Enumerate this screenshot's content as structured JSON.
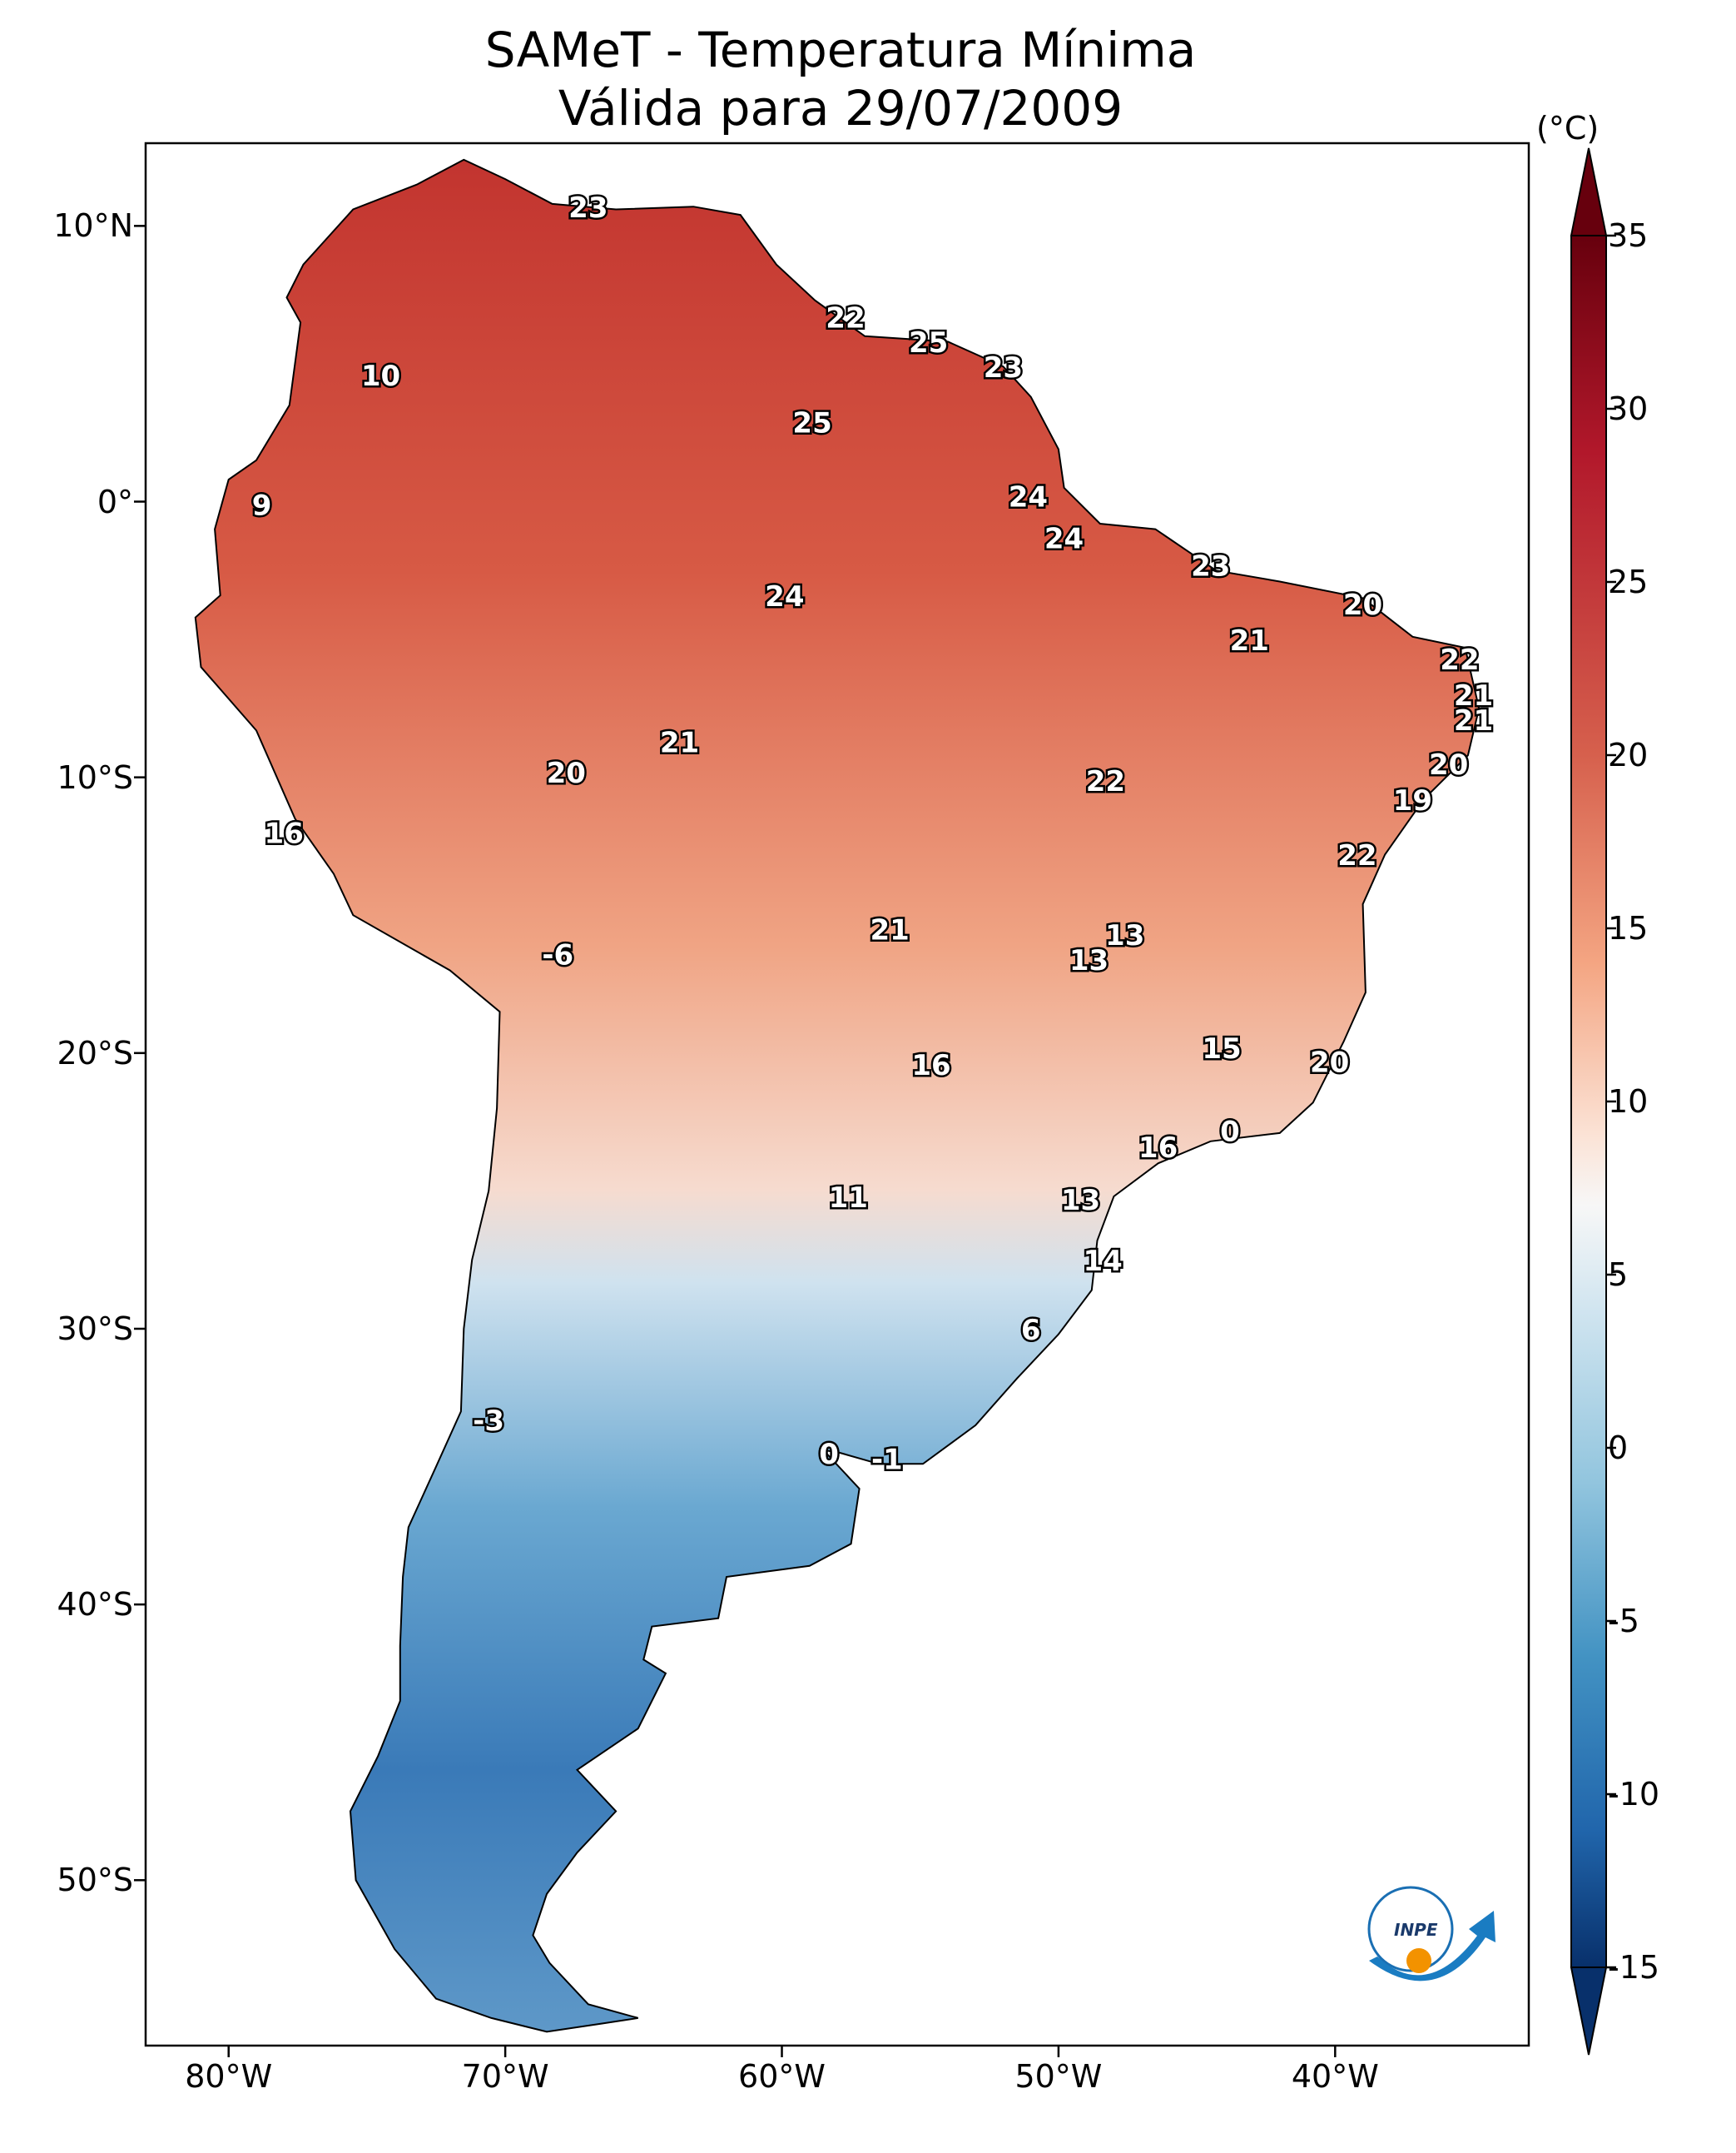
{
  "title": {
    "line1": "SAMeT - Temperatura Mínima",
    "line2": "Válida para 29/07/2009"
  },
  "axes": {
    "lat_ticks": [
      {
        "value": 10,
        "label": "10°N"
      },
      {
        "value": 0,
        "label": "0°"
      },
      {
        "value": -10,
        "label": "10°S"
      },
      {
        "value": -20,
        "label": "20°S"
      },
      {
        "value": -30,
        "label": "30°S"
      },
      {
        "value": -40,
        "label": "40°S"
      },
      {
        "value": -50,
        "label": "50°S"
      }
    ],
    "lon_ticks": [
      {
        "value": -80,
        "label": "80°W"
      },
      {
        "value": -70,
        "label": "70°W"
      },
      {
        "value": -60,
        "label": "60°W"
      },
      {
        "value": -50,
        "label": "50°W"
      },
      {
        "value": -40,
        "label": "40°W"
      }
    ],
    "lon_range": [
      -83,
      -33
    ],
    "lat_range": [
      -56,
      13
    ]
  },
  "colorbar": {
    "unit": "(°C)",
    "ticks": [
      "35",
      "30",
      "25",
      "20",
      "15",
      "10",
      "5",
      "0",
      "-5",
      "-10",
      "-15"
    ],
    "range": [
      -15,
      35
    ],
    "colors": {
      "cold": "#08306b",
      "mid": "#f7f7f7",
      "warm": "#67000d"
    }
  },
  "station_values": [
    {
      "lon": -67,
      "lat": 10.6,
      "value": "23"
    },
    {
      "lon": -74.5,
      "lat": 4.5,
      "value": "10"
    },
    {
      "lon": -57.7,
      "lat": 6.6,
      "value": "22"
    },
    {
      "lon": -54.7,
      "lat": 5.7,
      "value": "25"
    },
    {
      "lon": -52.0,
      "lat": 4.8,
      "value": "23"
    },
    {
      "lon": -58.9,
      "lat": 2.8,
      "value": "25"
    },
    {
      "lon": -51.1,
      "lat": 0.1,
      "value": "24"
    },
    {
      "lon": -78.8,
      "lat": -0.2,
      "value": "9"
    },
    {
      "lon": -49.8,
      "lat": -1.4,
      "value": "24"
    },
    {
      "lon": -44.5,
      "lat": -2.4,
      "value": "23"
    },
    {
      "lon": -59.9,
      "lat": -3.5,
      "value": "24"
    },
    {
      "lon": -39.0,
      "lat": -3.8,
      "value": "20"
    },
    {
      "lon": -43.1,
      "lat": -5.1,
      "value": "21"
    },
    {
      "lon": -35.5,
      "lat": -5.8,
      "value": "22"
    },
    {
      "lon": -35.0,
      "lat": -7.1,
      "value": "21"
    },
    {
      "lon": -35.0,
      "lat": -8.0,
      "value": "21"
    },
    {
      "lon": -63.7,
      "lat": -8.8,
      "value": "21"
    },
    {
      "lon": -67.8,
      "lat": -9.9,
      "value": "20"
    },
    {
      "lon": -35.9,
      "lat": -9.6,
      "value": "20"
    },
    {
      "lon": -48.3,
      "lat": -10.2,
      "value": "22"
    },
    {
      "lon": -37.2,
      "lat": -10.9,
      "value": "19"
    },
    {
      "lon": -78.0,
      "lat": -12.1,
      "value": "16"
    },
    {
      "lon": -39.2,
      "lat": -12.9,
      "value": "22"
    },
    {
      "lon": -56.1,
      "lat": -15.6,
      "value": "21"
    },
    {
      "lon": -47.6,
      "lat": -15.8,
      "value": "13"
    },
    {
      "lon": -48.9,
      "lat": -16.7,
      "value": "13"
    },
    {
      "lon": -68.1,
      "lat": -16.5,
      "value": "-6"
    },
    {
      "lon": -44.1,
      "lat": -19.9,
      "value": "15"
    },
    {
      "lon": -40.2,
      "lat": -20.4,
      "value": "20"
    },
    {
      "lon": -54.6,
      "lat": -20.5,
      "value": "16"
    },
    {
      "lon": -43.8,
      "lat": -22.9,
      "value": "0"
    },
    {
      "lon": -46.4,
      "lat": -23.5,
      "value": "16"
    },
    {
      "lon": -57.6,
      "lat": -25.3,
      "value": "11"
    },
    {
      "lon": -49.2,
      "lat": -25.4,
      "value": "13"
    },
    {
      "lon": -48.4,
      "lat": -27.6,
      "value": "14"
    },
    {
      "lon": -51.0,
      "lat": -30.1,
      "value": "6"
    },
    {
      "lon": -70.6,
      "lat": -33.4,
      "value": "-3"
    },
    {
      "lon": -58.3,
      "lat": -34.6,
      "value": "0"
    },
    {
      "lon": -56.2,
      "lat": -34.8,
      "value": "-1"
    }
  ],
  "logo": {
    "text": "INPE"
  }
}
